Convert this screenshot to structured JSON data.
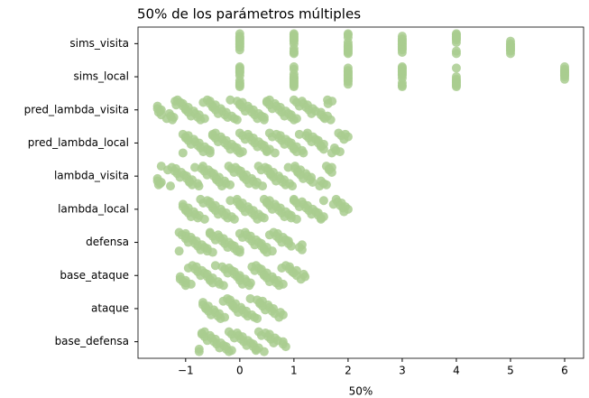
{
  "chart_data": {
    "type": "strip",
    "title": "50% de los parámetros múltiples",
    "x_label": "50%",
    "categories": [
      "sims_visita",
      "sims_local",
      "pred_lambda_visita",
      "pred_lambda_local",
      "lambda_visita",
      "lambda_local",
      "defensa",
      "base_ataque",
      "ataque",
      "base_defensa"
    ],
    "color": "#a9cc8f",
    "xlim": [
      -1.88,
      6.35
    ],
    "xticks": [
      {
        "value": -1,
        "label": "−1"
      },
      0,
      1,
      2,
      3,
      4,
      5,
      6
    ],
    "values": [
      [
        0,
        0,
        0,
        0,
        1,
        1,
        1,
        1,
        2,
        2,
        2,
        2,
        3,
        3,
        3,
        3,
        4,
        4,
        4,
        5,
        5,
        5
      ],
      [
        0,
        0,
        0,
        0,
        1,
        1,
        1,
        1,
        2,
        2,
        2,
        2,
        3,
        3,
        3,
        3,
        4,
        4,
        4,
        6,
        6,
        6
      ],
      [
        -1.52,
        -1.45,
        -1.3,
        -1.22,
        -1.15,
        -1.05,
        -0.95,
        -0.85,
        -0.75,
        -0.65,
        -0.55,
        -0.45,
        -0.35,
        -0.25,
        -0.15,
        -0.05,
        0.05,
        0.15,
        0.25,
        0.35,
        0.45,
        0.55,
        0.65,
        0.75,
        0.85,
        0.95,
        1.05,
        1.15,
        1.25,
        1.35,
        1.5,
        1.62,
        1.68
      ],
      [
        -1.05,
        -0.95,
        -0.85,
        -0.75,
        -0.65,
        -0.55,
        -0.45,
        -0.35,
        -0.25,
        -0.15,
        -0.05,
        0.05,
        0.15,
        0.25,
        0.35,
        0.45,
        0.55,
        0.65,
        0.75,
        0.85,
        0.95,
        1.05,
        1.15,
        1.25,
        1.35,
        1.45,
        1.55,
        1.75,
        1.85,
        1.95
      ],
      [
        -1.52,
        -1.45,
        -1.28,
        -1.18,
        -1.08,
        -0.98,
        -0.88,
        -0.78,
        -0.68,
        -0.58,
        -0.48,
        -0.38,
        -0.28,
        -0.18,
        -0.08,
        0.02,
        0.12,
        0.22,
        0.32,
        0.42,
        0.52,
        0.62,
        0.72,
        0.82,
        0.92,
        1.02,
        1.12,
        1.22,
        1.32,
        1.5,
        1.6,
        1.7
      ],
      [
        -1.05,
        -0.95,
        -0.85,
        -0.75,
        -0.65,
        -0.55,
        -0.45,
        -0.35,
        -0.25,
        -0.15,
        -0.05,
        0.05,
        0.15,
        0.25,
        0.35,
        0.45,
        0.55,
        0.65,
        0.75,
        0.85,
        0.95,
        1.05,
        1.15,
        1.25,
        1.35,
        1.45,
        1.55,
        1.78,
        1.88,
        1.95
      ],
      [
        -1.12,
        -1.0,
        -0.9,
        -0.8,
        -0.7,
        -0.6,
        -0.5,
        -0.4,
        -0.3,
        -0.2,
        -0.1,
        0,
        0.1,
        0.2,
        0.3,
        0.4,
        0.5,
        0.6,
        0.7,
        0.8,
        0.9,
        1.15
      ],
      [
        -1.1,
        -1.0,
        -0.9,
        -0.8,
        -0.7,
        -0.6,
        -0.5,
        -0.4,
        -0.3,
        -0.2,
        -0.1,
        0,
        0.1,
        0.2,
        0.3,
        0.4,
        0.5,
        0.6,
        0.7,
        0.8,
        0.92,
        1.05,
        1.18
      ],
      [
        -0.68,
        -0.58,
        -0.48,
        -0.38,
        -0.28,
        -0.18,
        -0.08,
        0.02,
        0.12,
        0.22,
        0.32,
        0.42,
        0.52,
        0.62,
        0.75
      ],
      [
        -0.75,
        -0.65,
        -0.55,
        -0.45,
        -0.35,
        -0.25,
        -0.15,
        -0.05,
        0.05,
        0.15,
        0.25,
        0.35,
        0.45,
        0.55,
        0.65,
        0.8
      ]
    ]
  }
}
